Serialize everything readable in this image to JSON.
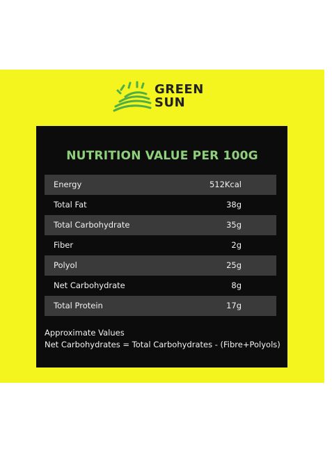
{
  "brand": {
    "line1": "GREEN",
    "line2": "SUN",
    "accent_color": "#8fd17a",
    "logo_icon": "sun-rays-logo-icon"
  },
  "panel": {
    "title": "NUTRITION VALUE PER 100G",
    "background": "#f4f41e"
  },
  "nutrition": {
    "rows": [
      {
        "label": "Energy",
        "value": "512Kcal"
      },
      {
        "label": "Total Fat",
        "value": "38g"
      },
      {
        "label": "Total Carbohydrate",
        "value": "35g"
      },
      {
        "label": "Fiber",
        "value": "2g"
      },
      {
        "label": "Polyol",
        "value": "25g"
      },
      {
        "label": "Net Carbohydrate",
        "value": "8g"
      },
      {
        "label": "Total Protein",
        "value": "17g"
      }
    ]
  },
  "footnote": {
    "line1": "Approximate Values",
    "line2": "Net Carbohydrates = Total Carbohydrates - (Fibre+Polyols)"
  }
}
